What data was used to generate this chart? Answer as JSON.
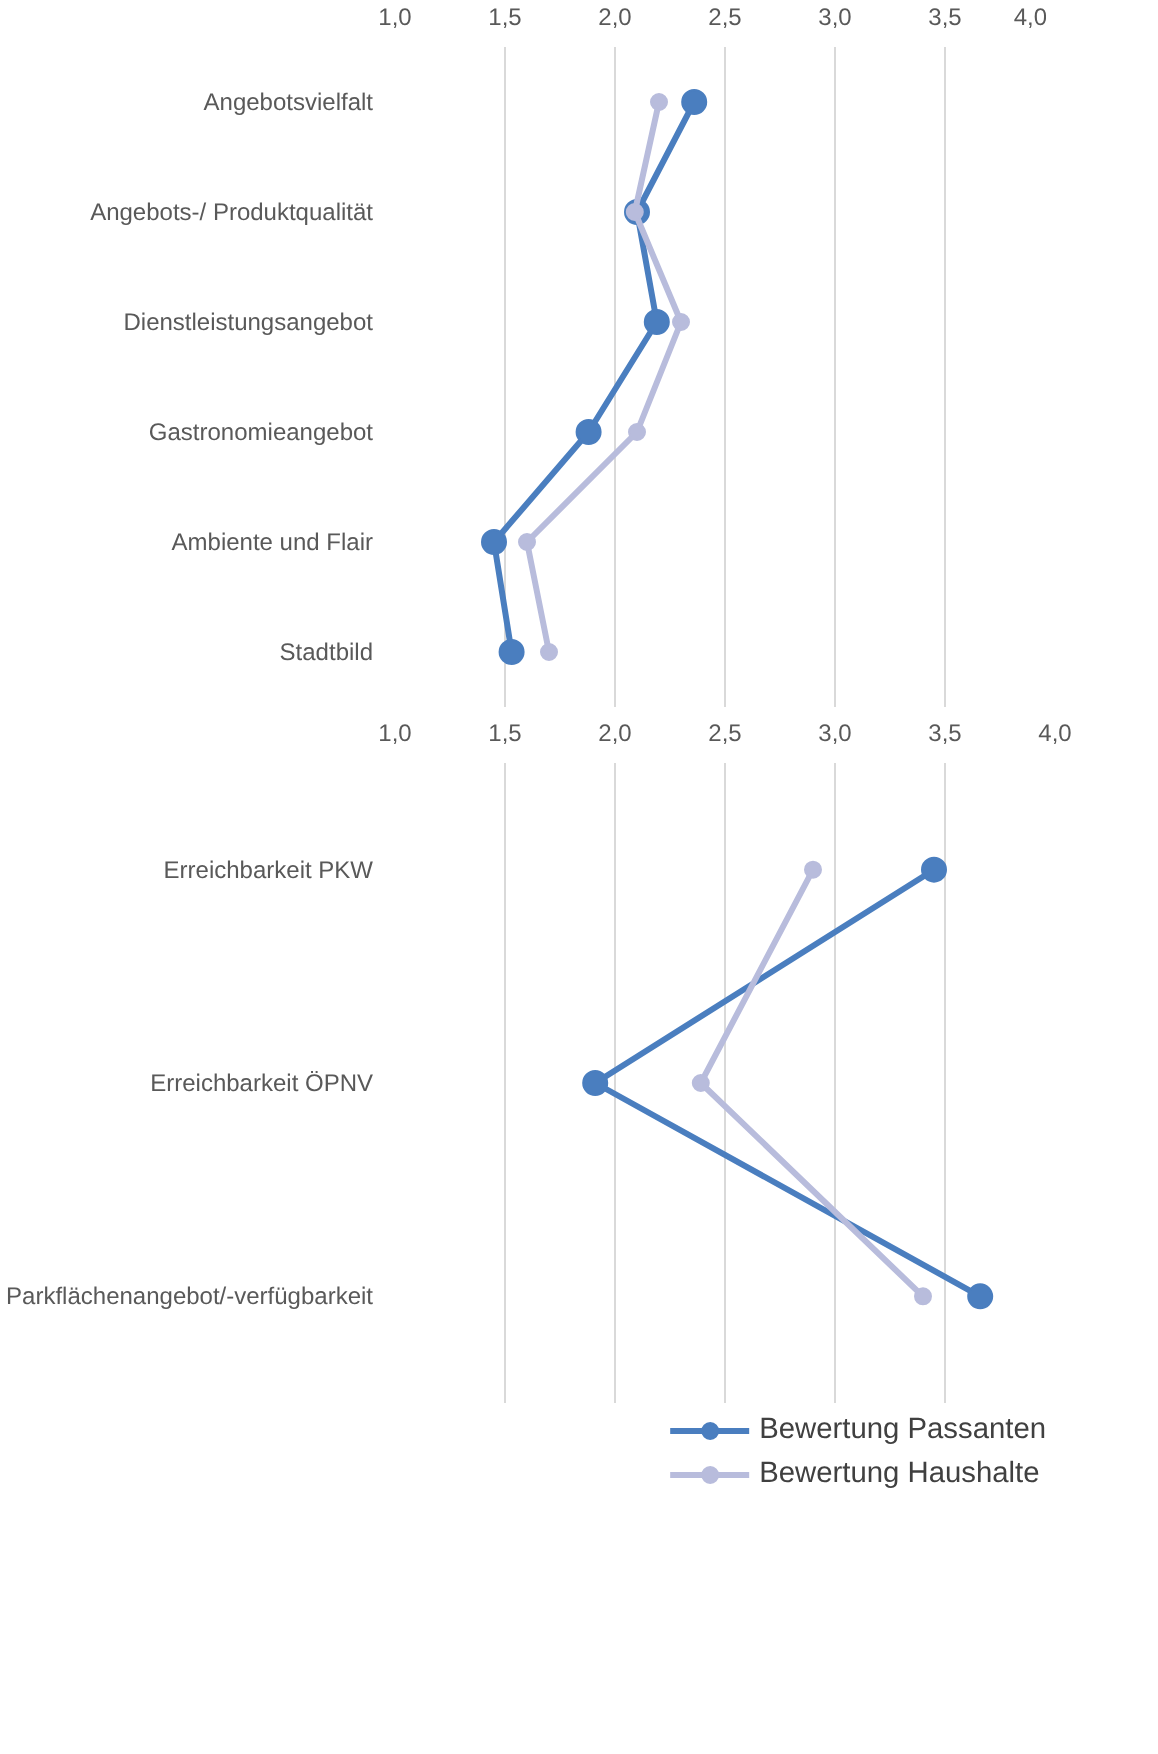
{
  "chart_data": [
    {
      "type": "line",
      "orientation": "horizontal",
      "categories": [
        "Angebotsvielfalt",
        "Angebots-/ Produktqualität",
        "Dienstleistungsangebot",
        "Gastronomieangebot",
        "Ambiente und Flair",
        "Stadtbild"
      ],
      "series": [
        {
          "name": "Bewertung Passanten",
          "color": "#4a7ebf",
          "values": [
            2.36,
            2.1,
            2.19,
            1.88,
            1.45,
            1.53
          ]
        },
        {
          "name": "Bewertung Haushalte",
          "color": "#b8bcdc",
          "values": [
            2.2,
            2.09,
            2.3,
            2.1,
            1.6,
            1.7
          ]
        }
      ],
      "xlim": [
        1,
        4
      ],
      "xticks": [
        {
          "value": 1,
          "label": "1,0"
        },
        {
          "value": 1.5,
          "label": "1,5"
        },
        {
          "value": 2,
          "label": "2,0"
        },
        {
          "value": 2.5,
          "label": "2,5"
        },
        {
          "value": 3,
          "label": "3,0"
        },
        {
          "value": 3.5,
          "label": "3,5"
        },
        {
          "value": 4,
          "label": "4,0"
        }
      ],
      "grid": "x",
      "marker": "circle",
      "line_style": "solid",
      "legend": "bottom"
    },
    {
      "type": "line",
      "orientation": "horizontal",
      "categories": [
        "Erreichbarkeit PKW",
        "Erreichbarkeit ÖPNV",
        "Parkflächenangebot/-verfügbarkeit"
      ],
      "series": [
        {
          "color": "#4a7ebf",
          "values": [
            3.45,
            1.91,
            3.66
          ]
        },
        {
          "color": "#b8bcdc",
          "values": [
            2.9,
            2.39,
            3.4
          ]
        }
      ],
      "xlim": [
        1,
        4
      ],
      "xticks": [
        {
          "value": 1,
          "label": "1,0"
        },
        {
          "value": 1.5,
          "label": "1,5"
        },
        {
          "value": 2,
          "label": "2,0"
        },
        {
          "value": 2.5,
          "label": "2,5"
        },
        {
          "value": 3,
          "label": "3,0"
        },
        {
          "value": 3.5,
          "label": "3,5"
        },
        {
          "value": 4,
          "label": "4,0"
        }
      ],
      "grid": "x",
      "marker": "circle",
      "line_style": "solid"
    }
  ]
}
